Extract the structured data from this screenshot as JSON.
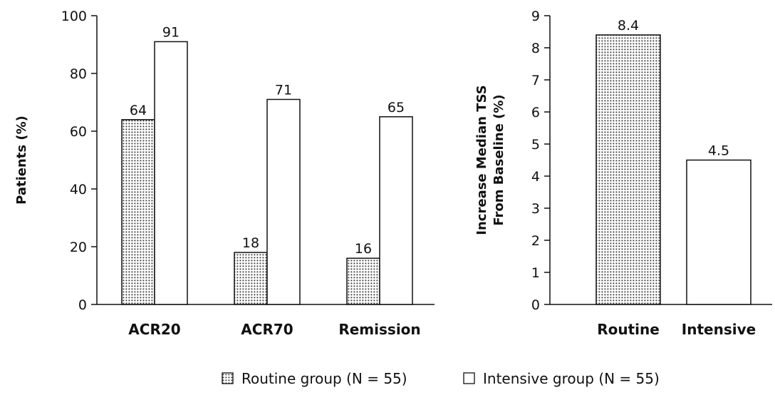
{
  "chart_data": [
    {
      "type": "bar",
      "categories": [
        "ACR20",
        "ACR70",
        "Remission"
      ],
      "series": [
        {
          "name": "Routine group (N = 55)",
          "values": [
            64,
            18,
            16
          ],
          "pattern": "dotted"
        },
        {
          "name": "Intensive group (N = 55)",
          "values": [
            91,
            71,
            65
          ],
          "pattern": "blank"
        }
      ],
      "data_labels": [
        [
          "64",
          "18",
          "16"
        ],
        [
          "91",
          "71",
          "65"
        ]
      ],
      "ylabel": "Patients (%)",
      "xlabel": "",
      "ylim": [
        0,
        100
      ],
      "yticks": [
        0,
        20,
        40,
        60,
        80,
        100
      ],
      "grid": false
    },
    {
      "type": "bar",
      "categories": [
        "Routine",
        "Intensive"
      ],
      "values": [
        8.4,
        4.5
      ],
      "patterns": [
        "dotted",
        "blank"
      ],
      "data_labels": [
        "8.4",
        "4.5"
      ],
      "ylabel_lines": [
        "Increase Median TSS",
        "From Baseline (%)"
      ],
      "xlabel": "",
      "ylim": [
        0,
        9
      ],
      "yticks": [
        0,
        1,
        2,
        3,
        4,
        5,
        6,
        7,
        8,
        9
      ],
      "grid": false
    }
  ],
  "legend": {
    "position": "bottom-center",
    "items": [
      {
        "label": "Routine group (N = 55)",
        "pattern": "dotted"
      },
      {
        "label": "Intensive group (N = 55)",
        "pattern": "blank"
      }
    ]
  },
  "colors": {
    "stroke": "#111111",
    "fill": "#ffffff",
    "dot": "#333333"
  }
}
